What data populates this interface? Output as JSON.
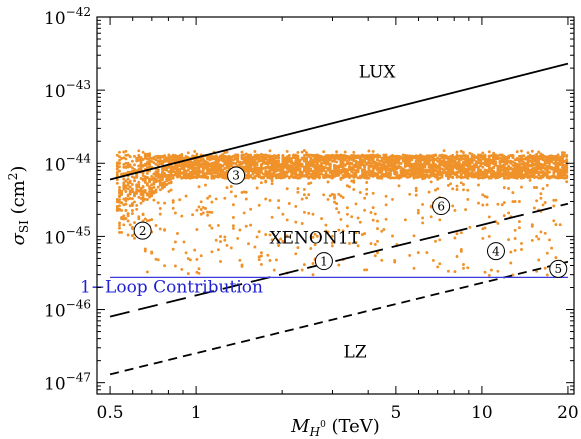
{
  "chart_data": {
    "type": "scatter",
    "title": "",
    "x_scale": "log",
    "y_scale": "log",
    "xlim": [
      0.45,
      21
    ],
    "ylim": [
      7e-48,
      1e-42
    ],
    "xlabel": {
      "prefix": "M",
      "sub": "H",
      "sub_sup": "0",
      "suffix": " (TeV)"
    },
    "ylabel": {
      "prefix": "σ",
      "sub": "SI",
      "suffix": " (cm",
      "sup": "2",
      "close": ")"
    },
    "x_ticks": [
      {
        "value": 0.5,
        "label": "0.5"
      },
      {
        "value": 1,
        "label": "1"
      },
      {
        "value": 5,
        "label": "5"
      },
      {
        "value": 10,
        "label": "10"
      },
      {
        "value": 20,
        "label": "20"
      }
    ],
    "y_ticks": [
      {
        "value": 1e-47,
        "base": "10",
        "exp": "−47"
      },
      {
        "value": 1e-46,
        "base": "10",
        "exp": "−46"
      },
      {
        "value": 1e-45,
        "base": "10",
        "exp": "−45"
      },
      {
        "value": 1e-44,
        "base": "10",
        "exp": "−44"
      },
      {
        "value": 1e-43,
        "base": "10",
        "exp": "−43"
      },
      {
        "value": 1e-42,
        "base": "10",
        "exp": "−42"
      }
    ],
    "grid": false,
    "lines": [
      {
        "name": "LUX",
        "style": "solid",
        "color": "#000000",
        "points": [
          [
            0.5,
            6e-45
          ],
          [
            20,
            2.3e-43
          ]
        ]
      },
      {
        "name": "XENON1T",
        "style": "long-dash",
        "color": "#000000",
        "points": [
          [
            0.5,
            8e-47
          ],
          [
            20,
            2.8e-45
          ]
        ]
      },
      {
        "name": "LZ",
        "style": "short-dash",
        "color": "#000000",
        "points": [
          [
            0.5,
            1.3e-47
          ],
          [
            20,
            4.5e-46
          ]
        ]
      },
      {
        "name": "1−Loop Contribution",
        "style": "solid",
        "color": "#3a3ae0",
        "points": [
          [
            0.5,
            2.75e-46
          ],
          [
            20,
            2.75e-46
          ]
        ]
      }
    ],
    "line_labels": [
      {
        "text": "LUX",
        "x": 4.3,
        "y": 1.5e-43
      },
      {
        "text": "XENON1T",
        "x": 2.6,
        "y": 8e-46
      },
      {
        "text": "LZ",
        "x": 3.6,
        "y": 2.2e-47
      },
      {
        "text": "1−Loop Contribution",
        "x": 0.82,
        "y": 1.7e-46,
        "color": "#1f1fd6"
      }
    ],
    "scatter": {
      "name": "parameter scan",
      "color": "#f0922a",
      "x_range": [
        0.53,
        19.8
      ],
      "y_floor": 2.8e-46,
      "y_ceiling": 1.5e-44,
      "band": [
        7e-45,
        1.3e-44
      ]
    },
    "benchmarks": [
      {
        "label": "1",
        "x": 2.8,
        "y": 4.6e-46
      },
      {
        "label": "2",
        "x": 0.65,
        "y": 1.2e-45
      },
      {
        "label": "3",
        "x": 1.38,
        "y": 6.8e-45
      },
      {
        "label": "4",
        "x": 11.2,
        "y": 6.3e-46
      },
      {
        "label": "5",
        "x": 18.5,
        "y": 3.6e-46
      },
      {
        "label": "6",
        "x": 7.2,
        "y": 2.6e-45
      }
    ]
  }
}
